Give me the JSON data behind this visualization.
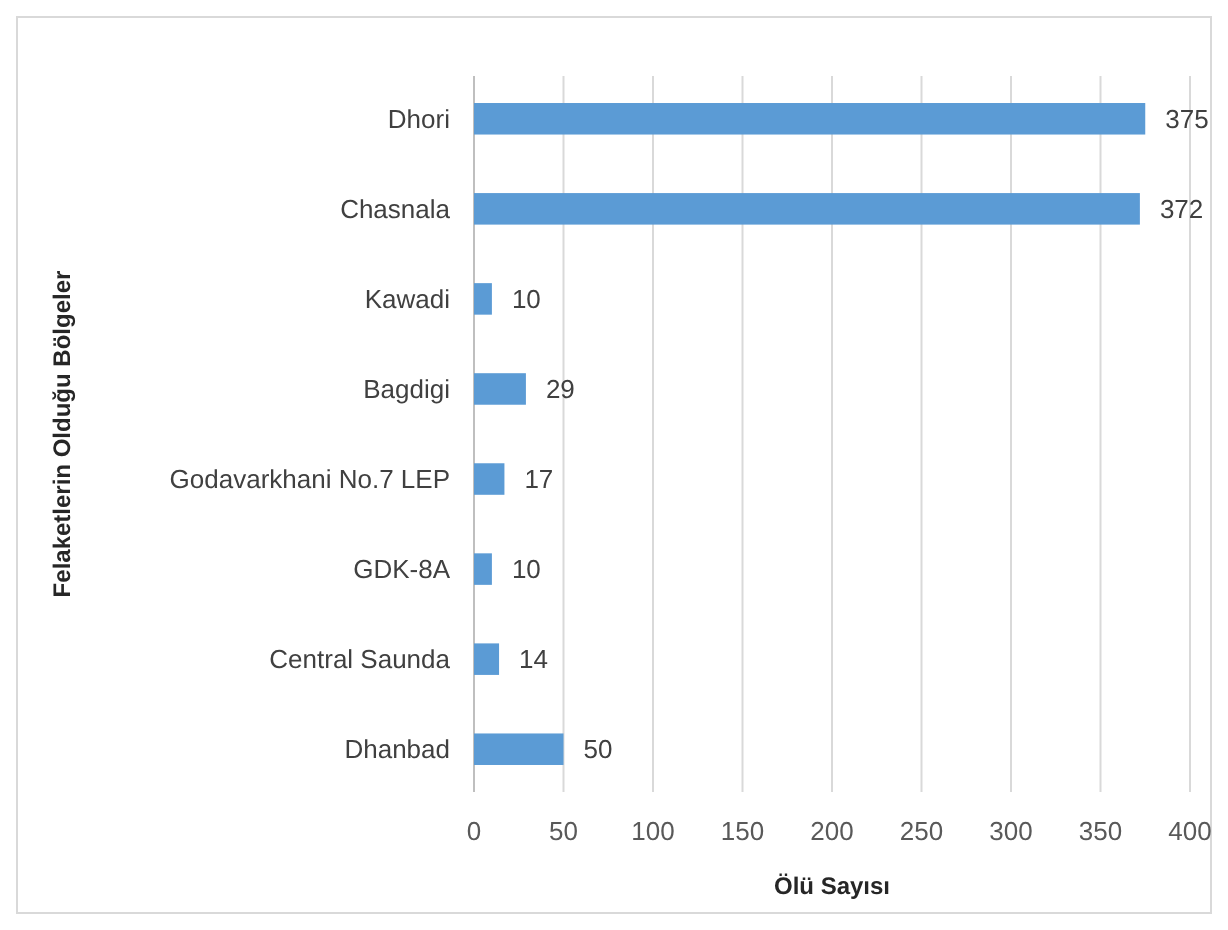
{
  "chart_data": {
    "type": "bar",
    "orientation": "horizontal",
    "xlabel": "Ölü Sayısı",
    "ylabel": "Felaketlerin Olduğu Bölgeler",
    "categories": [
      "Dhori",
      "Chasnala",
      "Kawadi",
      "Bagdigi",
      "Godavarkhani No.7 LEP",
      "GDK-8A",
      "Central Saunda",
      "Dhanbad"
    ],
    "values": [
      375,
      372,
      10,
      29,
      17,
      10,
      14,
      50
    ],
    "color": "#5b9bd5",
    "xlim": [
      0,
      400
    ],
    "xticks": [
      0,
      50,
      100,
      150,
      200,
      250,
      300,
      350,
      400
    ],
    "grid": "x",
    "data_labels": true
  }
}
